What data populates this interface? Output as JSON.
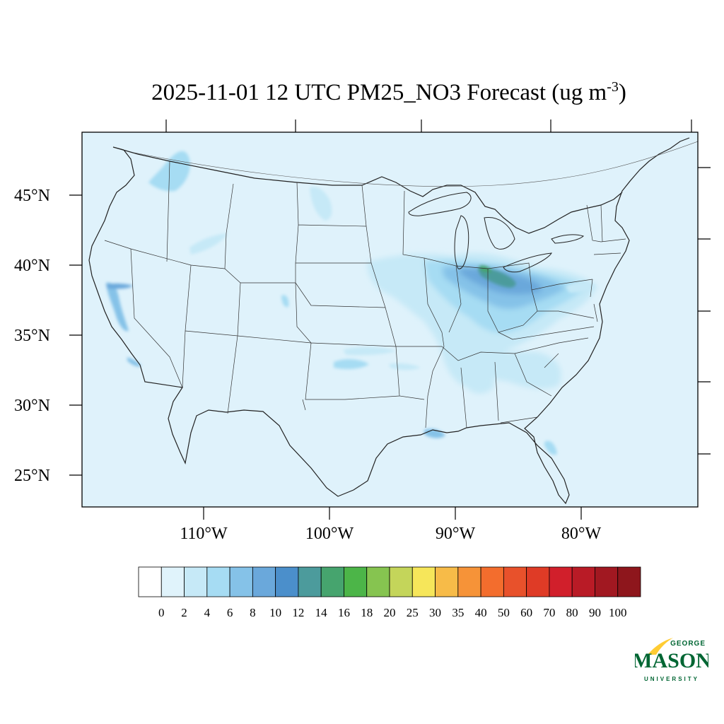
{
  "title": {
    "main": "2025-11-01 12 UTC PM25_NO3 Forecast (ug m",
    "sup": "-3",
    "close": ")"
  },
  "axes": {
    "lat_labels": [
      "45°N",
      "40°N",
      "35°N",
      "30°N",
      "25°N"
    ],
    "lon_labels": [
      "110°W",
      "100°W",
      "90°W",
      "80°W"
    ]
  },
  "colorbar": {
    "labels": [
      "0",
      "2",
      "4",
      "6",
      "8",
      "10",
      "12",
      "14",
      "16",
      "18",
      "20",
      "25",
      "30",
      "35",
      "40",
      "50",
      "60",
      "70",
      "80",
      "90",
      "100"
    ],
    "colors": [
      "#ffffff",
      "#e0f3fb",
      "#c6e9f7",
      "#a6dcf3",
      "#85c2e8",
      "#6aa8db",
      "#4b8fcb",
      "#4c9b9c",
      "#46a46e",
      "#4cb548",
      "#86c450",
      "#c4d55a",
      "#f6e65a",
      "#f7bb48",
      "#f69338",
      "#f36d2d",
      "#e8512b",
      "#df3b26",
      "#d11f2b",
      "#b91b26",
      "#a11821",
      "#8e161c"
    ]
  },
  "colors": {
    "background_field": "#dff2fb",
    "outline": "#222222"
  },
  "logo": {
    "top": "GEORGE",
    "main": "MASON",
    "bottom": "UNIVERSITY",
    "text_color": "#006633",
    "swoosh_color": "#ffcc33"
  }
}
